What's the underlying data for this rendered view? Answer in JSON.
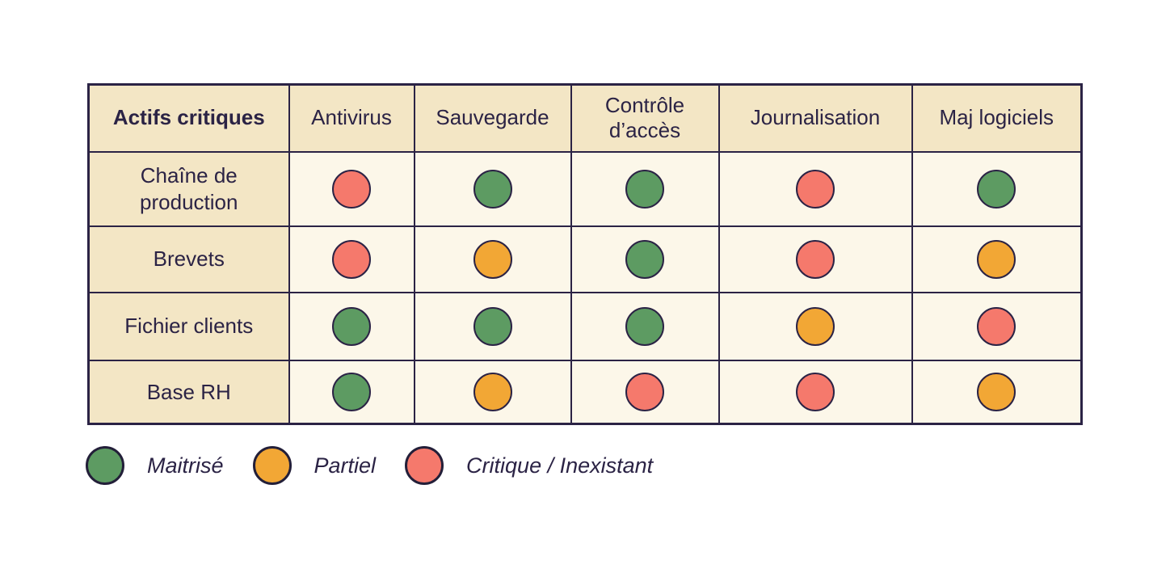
{
  "chart_data": {
    "type": "table",
    "title": "",
    "columns": [
      "Actifs critiques",
      "Antivirus",
      "Sauvegarde",
      "Contrôle d’accès",
      "Journalisation",
      "Maj logiciels"
    ],
    "rows": [
      {
        "label": "Chaîne de production",
        "values": [
          "critique",
          "maitrise",
          "maitrise",
          "critique",
          "maitrise"
        ]
      },
      {
        "label": "Brevets",
        "values": [
          "critique",
          "partiel",
          "maitrise",
          "critique",
          "partiel"
        ]
      },
      {
        "label": "Fichier clients",
        "values": [
          "maitrise",
          "maitrise",
          "maitrise",
          "partiel",
          "critique"
        ]
      },
      {
        "label": "Base RH",
        "values": [
          "maitrise",
          "partiel",
          "critique",
          "critique",
          "partiel"
        ]
      }
    ],
    "legend": [
      {
        "label": "Maitrisé",
        "status": "maitrise",
        "color": "#5d9b62"
      },
      {
        "label": "Partiel",
        "status": "partiel",
        "color": "#f2a735"
      },
      {
        "label": "Critique / Inexistant",
        "status": "critique",
        "color": "#f5796c"
      }
    ],
    "status_colors": {
      "maitrise": "#5d9b62",
      "partiel": "#f2a735",
      "critique": "#f5796c"
    },
    "layout_colors": {
      "header_bg": "#f3e6c5",
      "cell_bg": "#fcf7e9",
      "ink": "#2b2345",
      "page_bg": "#ffffff"
    },
    "legend_position": "bottom-left",
    "grid": "on"
  }
}
